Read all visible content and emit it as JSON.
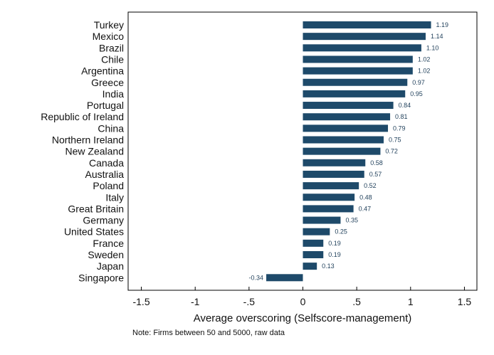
{
  "chart_data": {
    "type": "bar",
    "orientation": "horizontal",
    "categories": [
      "Turkey",
      "Mexico",
      "Brazil",
      "Chile",
      "Argentina",
      "Greece",
      "India",
      "Portugal",
      "Republic of Ireland",
      "China",
      "Northern Ireland",
      "New Zealand",
      "Canada",
      "Australia",
      "Poland",
      "Italy",
      "Great Britain",
      "Germany",
      "United States",
      "France",
      "Sweden",
      "Japan",
      "Singapore"
    ],
    "values": [
      1.19,
      1.14,
      1.1,
      1.02,
      1.02,
      0.97,
      0.95,
      0.84,
      0.81,
      0.79,
      0.75,
      0.72,
      0.58,
      0.57,
      0.52,
      0.48,
      0.47,
      0.35,
      0.25,
      0.19,
      0.19,
      0.13,
      -0.34
    ],
    "value_labels": [
      "1.19",
      "1.14",
      "1.10",
      "1.02",
      "1.02",
      "0.97",
      "0.95",
      "0.84",
      "0.81",
      "0.79",
      "0.75",
      "0.72",
      "0.58",
      "0.57",
      "0.52",
      "0.48",
      "0.47",
      "0.35",
      "0.25",
      "0.19",
      "0.19",
      "0.13",
      "-0.34"
    ],
    "xlabel": "Average overscoring (Selfscore-management)",
    "xlim": [
      -1.65,
      1.65
    ],
    "xticks": [
      -1.5,
      -1,
      -0.5,
      0,
      0.5,
      1,
      1.5
    ],
    "xtick_labels": [
      "-1.5",
      "-1",
      "-.5",
      "0",
      ".5",
      "1",
      "1.5"
    ],
    "grid": false,
    "bar_color": "#1e4a6a",
    "label_color": "#1f3f5a",
    "note": "Note: Firms between 50 and 5000, raw data"
  }
}
